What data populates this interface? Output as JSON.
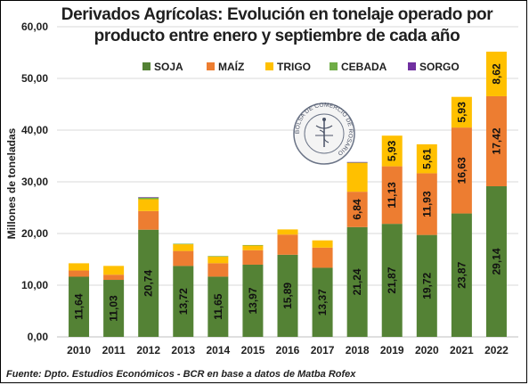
{
  "source_note": "Fuente: Dpto. Estudios Económicos - BCR en base a datos de Matba Rofex",
  "seal_text": "BOLSA DE COMERCIO DE ROSARIO",
  "chart_data": {
    "type": "bar",
    "stacked": true,
    "title": "Derivados Agrícolas: Evolución en tonelaje operado por producto entre enero y septiembre de cada año",
    "title_lines": [
      "Derivados Agrícolas: Evolución en tonelaje operado por",
      "producto entre enero y septiembre de cada año"
    ],
    "ylabel": "Millones de toneladas",
    "xlabel": "",
    "ylim": [
      0,
      60
    ],
    "yticks": [
      "0,00",
      "10,00",
      "20,00",
      "30,00",
      "40,00",
      "50,00",
      "60,00"
    ],
    "grid": true,
    "legend_position": "top",
    "categories": [
      "2010",
      "2011",
      "2012",
      "2013",
      "2014",
      "2015",
      "2016",
      "2017",
      "2018",
      "2019",
      "2020",
      "2021",
      "2022"
    ],
    "series": [
      {
        "name": "SOJA",
        "color": "#548235",
        "values": [
          11.64,
          11.03,
          20.74,
          13.72,
          11.65,
          13.97,
          15.89,
          13.37,
          21.24,
          21.87,
          19.72,
          23.87,
          29.14
        ],
        "labels": [
          "11,64",
          "11,03",
          "20,74",
          "13,72",
          "11,65",
          "13,97",
          "15,89",
          "13,37",
          "21,24",
          "21,87",
          "19,72",
          "23,87",
          "29,14"
        ]
      },
      {
        "name": "MAÍZ",
        "color": "#ED7D31",
        "values": [
          1.2,
          1.0,
          3.6,
          2.9,
          2.6,
          2.8,
          3.9,
          3.9,
          6.84,
          11.13,
          11.93,
          16.63,
          17.42
        ],
        "labels": [
          "",
          "",
          "",
          "",
          "",
          "",
          "",
          "",
          "6,84",
          "11,13",
          "11,93",
          "16,63",
          "17,42"
        ]
      },
      {
        "name": "TRIGO",
        "color": "#FFC000",
        "values": [
          1.4,
          1.7,
          2.3,
          1.3,
          1.3,
          0.9,
          1.0,
          1.4,
          5.6,
          5.93,
          5.61,
          5.93,
          8.62
        ],
        "labels": [
          "",
          "",
          "",
          "",
          "",
          "",
          "",
          "",
          "",
          "5,93",
          "5,61",
          "5,93",
          "8,62"
        ]
      },
      {
        "name": "CEBADA",
        "color": "#70AD47",
        "values": [
          0,
          0,
          0.3,
          0.1,
          0.1,
          0.1,
          0,
          0,
          0.1,
          0,
          0,
          0,
          0
        ],
        "labels": [
          "",
          "",
          "",
          "",
          "",
          "",
          "",
          "",
          "",
          "",
          "",
          "",
          ""
        ]
      },
      {
        "name": "SORGO",
        "color": "#7030A0",
        "values": [
          0,
          0,
          0.1,
          0,
          0,
          0,
          0,
          0,
          0.05,
          0,
          0,
          0,
          0
        ],
        "labels": [
          "",
          "",
          "",
          "",
          "",
          "",
          "",
          "",
          "",
          "",
          "",
          "",
          ""
        ]
      }
    ]
  }
}
